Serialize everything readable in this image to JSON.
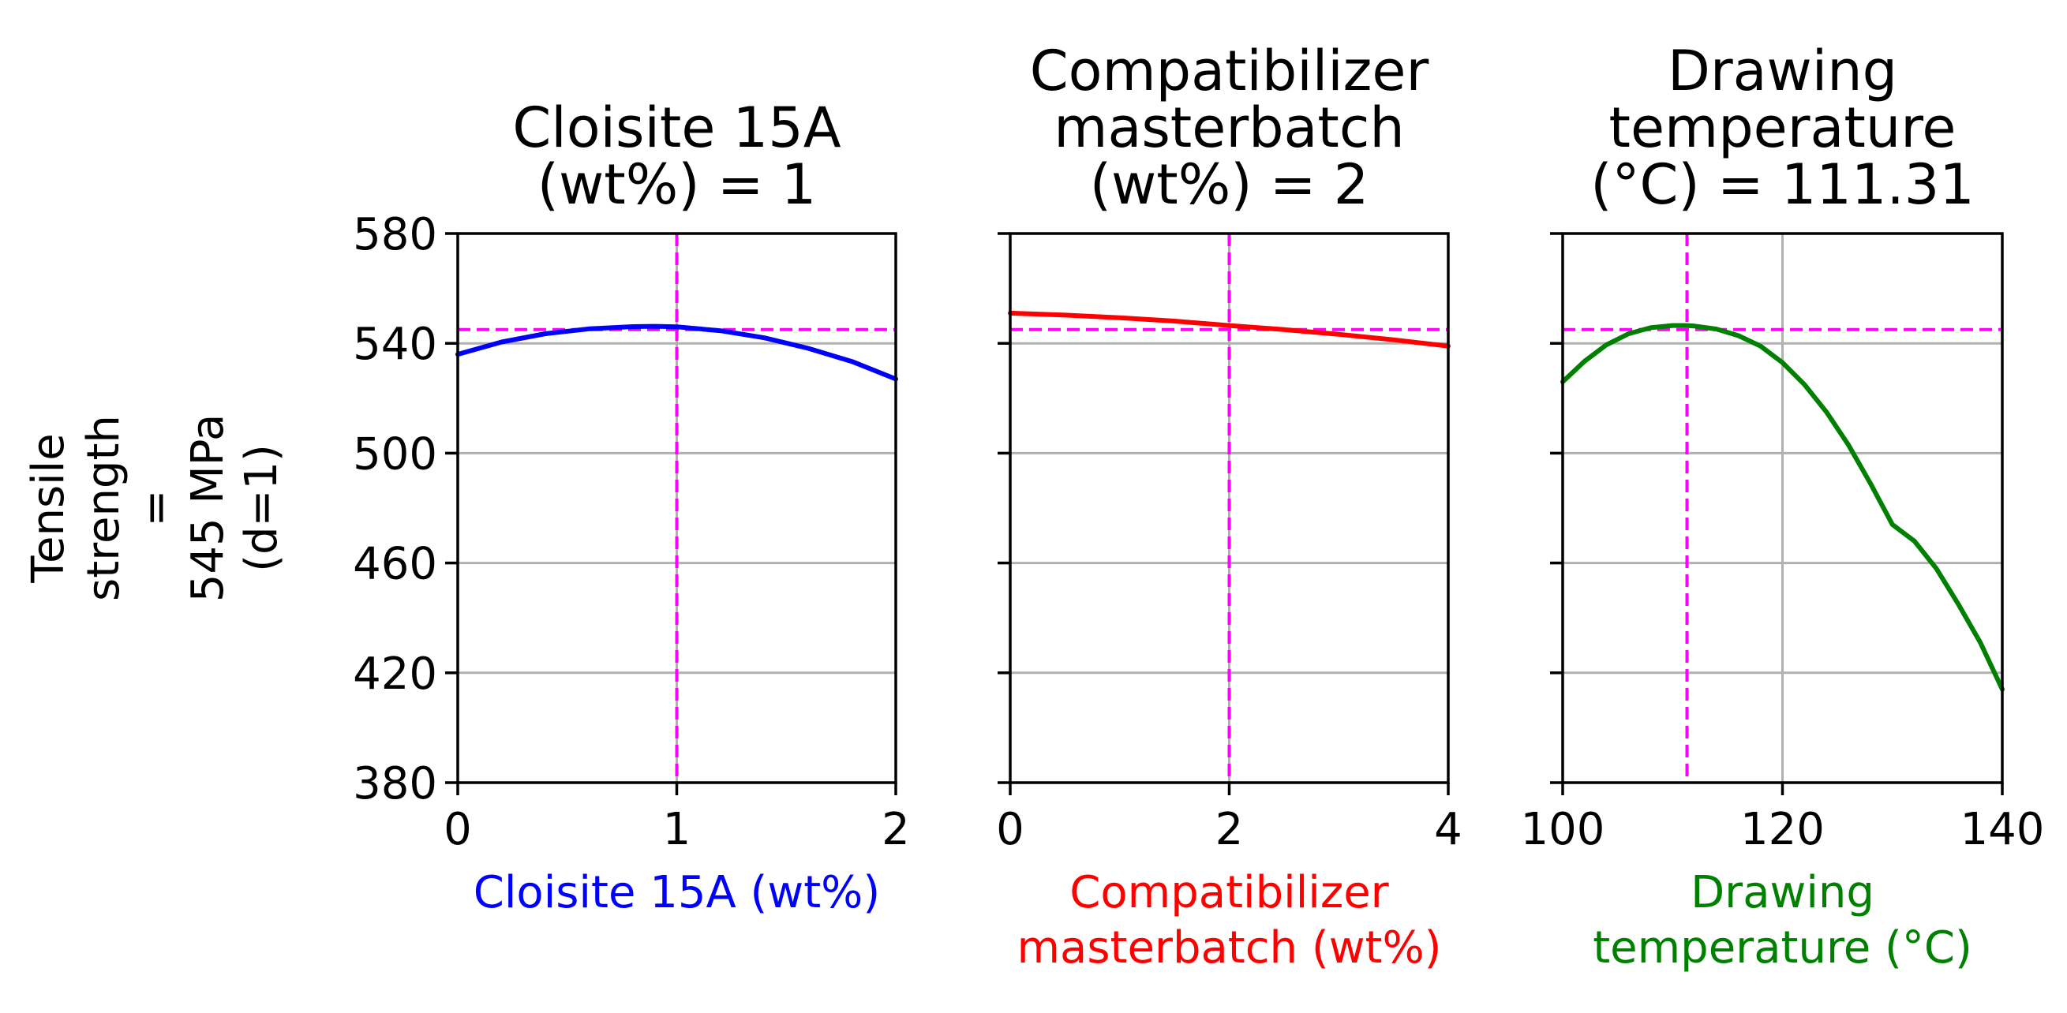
{
  "chart_data": {
    "type": "line",
    "ylabel_lines": [
      "Tensile",
      "strength",
      "=",
      "545 MPa",
      "(d=1)"
    ],
    "ylim": [
      380,
      580
    ],
    "yticks": [
      380,
      420,
      460,
      500,
      540,
      580
    ],
    "ytick_labels": [
      "380",
      "420",
      "460",
      "500",
      "540",
      "580"
    ],
    "grid": true,
    "reference_value": 545,
    "reference_color": "#ff00ff",
    "panels": [
      {
        "title_lines": [
          "Cloisite 15A",
          "(wt%) = 1"
        ],
        "xlabel_lines": [
          "Cloisite 15A (wt%)"
        ],
        "xlim": [
          0,
          2
        ],
        "xticks": [
          0,
          1,
          2
        ],
        "xtick_labels": [
          "0",
          "1",
          "2"
        ],
        "marker_x": 1,
        "series_color": "#0000ff",
        "series": {
          "x": [
            0,
            0.2,
            0.4,
            0.6,
            0.8,
            0.9,
            1.0,
            1.2,
            1.4,
            1.6,
            1.8,
            2.0
          ],
          "y": [
            536,
            540.5,
            543.5,
            545.3,
            546.1,
            546.2,
            546,
            544.6,
            542,
            538.2,
            533.4,
            527
          ]
        }
      },
      {
        "title_lines": [
          "Compatibilizer",
          "masterbatch",
          "(wt%) = 2"
        ],
        "xlabel_lines": [
          "Compatibilizer",
          "masterbatch (wt%)"
        ],
        "xlim": [
          0,
          4
        ],
        "xticks": [
          0,
          2,
          4
        ],
        "xtick_labels": [
          "0",
          "2",
          "4"
        ],
        "marker_x": 2,
        "series_color": "#ff0000",
        "series": {
          "x": [
            0,
            0.5,
            1,
            1.5,
            2,
            2.5,
            3,
            3.5,
            4
          ],
          "y": [
            551,
            550.3,
            549.3,
            548.1,
            546.5,
            545,
            543.3,
            541.3,
            539
          ]
        }
      },
      {
        "title_lines": [
          "Drawing",
          "temperature",
          "(°C) = 111.31"
        ],
        "xlabel_lines": [
          "Drawing",
          "temperature (°C)"
        ],
        "xlim": [
          100,
          140
        ],
        "xticks": [
          100,
          120,
          140
        ],
        "xtick_labels": [
          "100",
          "120",
          "140"
        ],
        "marker_x": 111.31,
        "series_color": "#008000",
        "series": {
          "x": [
            100,
            102,
            104,
            106,
            108,
            110,
            111.3,
            112,
            114,
            116,
            118,
            120,
            122,
            124,
            126,
            128,
            130,
            132,
            134,
            136,
            138,
            140
          ],
          "y": [
            526,
            533.5,
            539.5,
            543.5,
            545.7,
            546.5,
            546.5,
            546.3,
            545.2,
            542.8,
            539,
            533,
            525,
            515,
            503,
            489,
            474,
            468,
            458,
            445,
            431,
            414
          ]
        }
      }
    ]
  }
}
